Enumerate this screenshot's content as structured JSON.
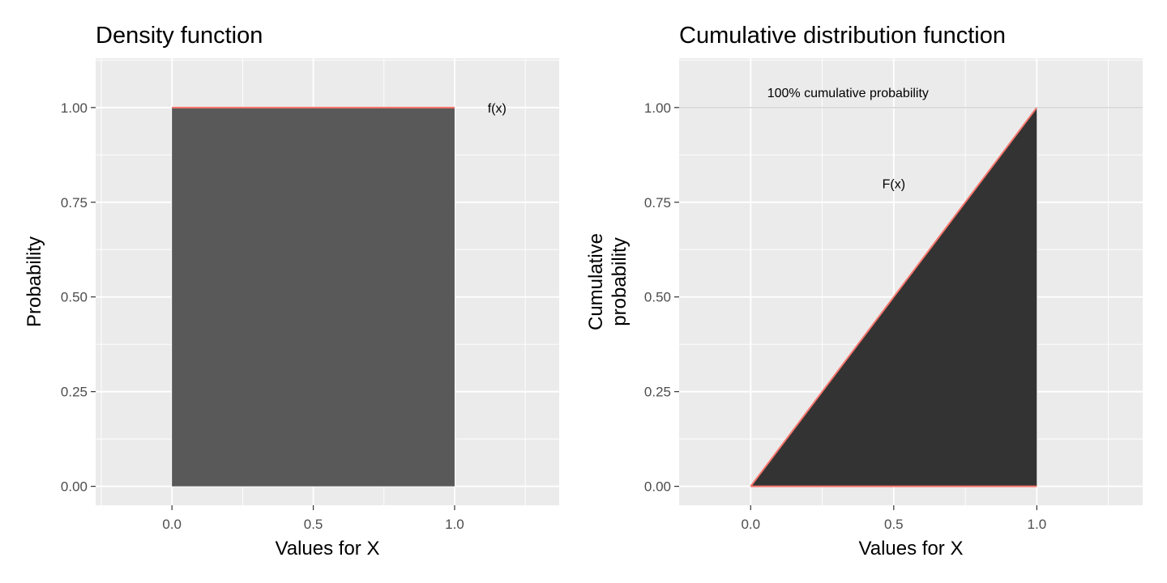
{
  "chart_data": [
    {
      "type": "area",
      "title": "Density function",
      "xlabel": "Values for X",
      "ylabel": "Probability",
      "xlim": [
        -0.27,
        1.37
      ],
      "ylim": [
        -0.05,
        1.13
      ],
      "x_ticks": [
        0.0,
        0.5,
        1.0
      ],
      "x_tick_labels": [
        "0.0",
        "0.5",
        "1.0"
      ],
      "y_ticks": [
        0.0,
        0.25,
        0.5,
        0.75,
        1.0
      ],
      "y_tick_labels": [
        "0.00",
        "0.25",
        "0.50",
        "0.75",
        "1.00"
      ],
      "grid": true,
      "fill_color": "#595959",
      "line_color": "#f8766d",
      "series": [
        {
          "x": [
            0,
            1
          ],
          "y": [
            1,
            1
          ]
        }
      ],
      "annotations": [
        {
          "text": "f(x)",
          "x": 1.15,
          "y": 1.0
        }
      ]
    },
    {
      "type": "area",
      "title": "Cumulative distribution function",
      "xlabel": "",
      "xlabel_lines": [
        "Values for X"
      ],
      "ylabel": "Cumulative probability",
      "ylabel_lines": [
        "Cumulative",
        "probability"
      ],
      "xlim": [
        -0.25,
        1.37
      ],
      "ylim": [
        -0.05,
        1.13
      ],
      "x_ticks": [
        0.0,
        0.5,
        1.0
      ],
      "x_tick_labels": [
        "0.0",
        "0.5",
        "1.0"
      ],
      "y_ticks": [
        0.0,
        0.25,
        0.5,
        0.75,
        1.0
      ],
      "y_tick_labels": [
        "0.00",
        "0.25",
        "0.50",
        "0.75",
        "1.00"
      ],
      "grid": true,
      "fill_color": "#333333",
      "line_color": "#f8766d",
      "series": [
        {
          "x": [
            0,
            1
          ],
          "y": [
            0,
            1
          ]
        }
      ],
      "reference_line_y": 1.0,
      "annotations": [
        {
          "text": "100% cumulative probability",
          "x": 0.34,
          "y": 1.04
        },
        {
          "text": "F(x)",
          "x": 0.5,
          "y": 0.8
        }
      ]
    }
  ]
}
